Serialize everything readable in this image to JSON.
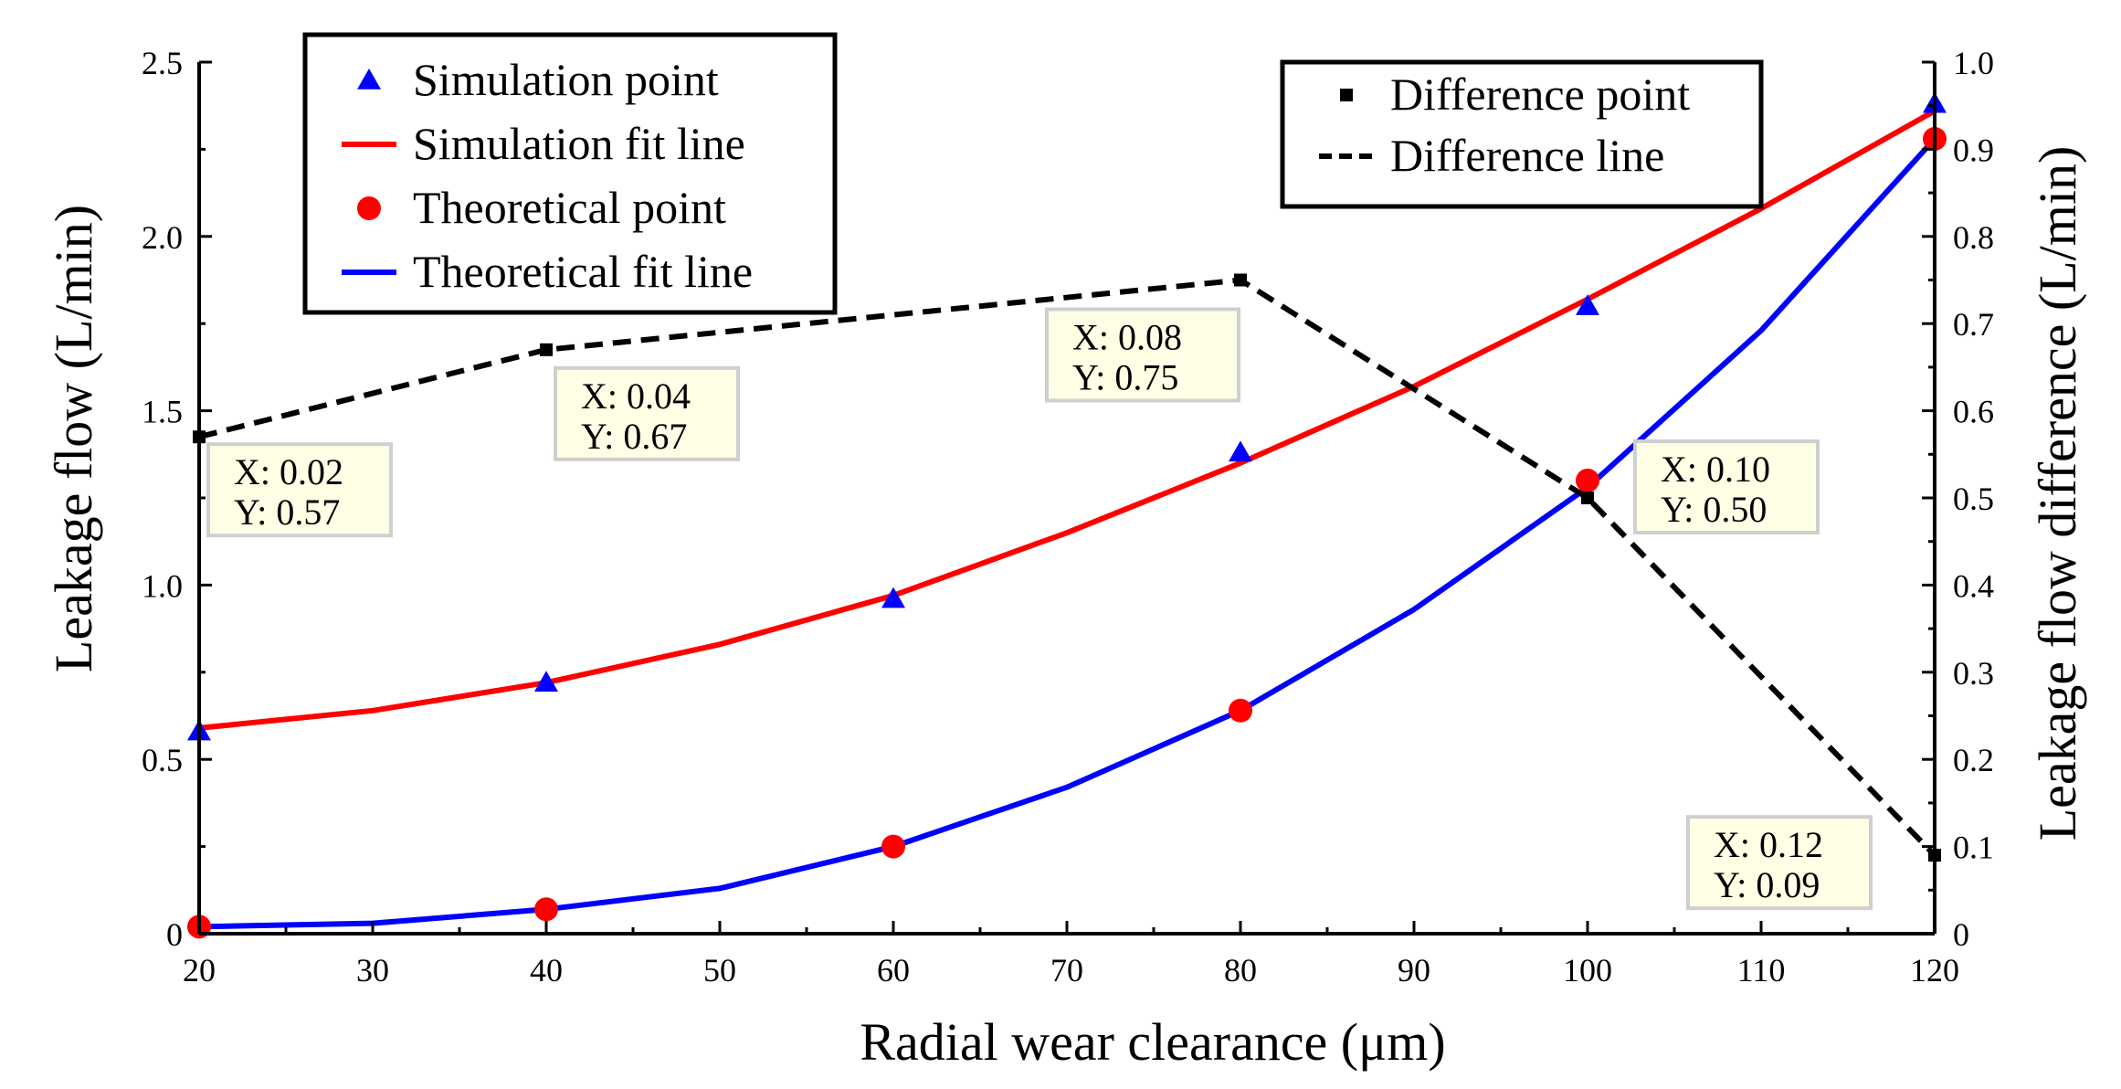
{
  "chart_data": {
    "type": "line",
    "title": "",
    "xlabel": "Radial wear clearance (μm)",
    "ylabel": "Leakage flow (L/min)",
    "y2label": "Leakage flow difference (L/min)",
    "xlim": [
      20,
      120
    ],
    "ylim": [
      0,
      2.5
    ],
    "y2lim": [
      0,
      1.0
    ],
    "grid": false,
    "x_ticks": [
      "20",
      "30",
      "40",
      "50",
      "60",
      "70",
      "80",
      "90",
      "100",
      "110",
      "120"
    ],
    "y_ticks": [
      "0",
      "0.5",
      "1.0",
      "1.5",
      "2.0",
      "2.5"
    ],
    "y2_ticks": [
      "0",
      "0.1",
      "0.2",
      "0.3",
      "0.4",
      "0.5",
      "0.6",
      "0.7",
      "0.8",
      "0.9",
      "1.0"
    ],
    "legend_left": {
      "placement": "top-left",
      "entries": [
        {
          "label": "Simulation point",
          "marker": "triangle",
          "color": "#0000ff"
        },
        {
          "label": "Simulation fit line",
          "line": "solid",
          "color": "#ff0000"
        },
        {
          "label": "Theoretical point",
          "marker": "circle",
          "color": "#ff0000"
        },
        {
          "label": "Theoretical fit line",
          "line": "solid",
          "color": "#0000ff"
        }
      ]
    },
    "legend_right": {
      "placement": "top-right",
      "entries": [
        {
          "label": "Difference point",
          "marker": "square",
          "color": "#000000"
        },
        {
          "label": "Difference line",
          "line": "dashed",
          "color": "#000000"
        }
      ]
    },
    "series": [
      {
        "name": "Simulation point",
        "axis": "left",
        "kind": "marker",
        "marker": "triangle",
        "color": "#0000ff",
        "x": [
          20,
          40,
          60,
          80,
          100,
          120
        ],
        "y": [
          0.58,
          0.72,
          0.96,
          1.38,
          1.8,
          2.38
        ]
      },
      {
        "name": "Simulation fit line",
        "axis": "left",
        "kind": "line",
        "dash": "solid",
        "color": "#ff0000",
        "x": [
          20,
          30,
          40,
          50,
          60,
          70,
          80,
          90,
          100,
          110,
          120
        ],
        "y": [
          0.59,
          0.64,
          0.72,
          0.83,
          0.97,
          1.15,
          1.35,
          1.57,
          1.82,
          2.08,
          2.36
        ]
      },
      {
        "name": "Theoretical point",
        "axis": "left",
        "kind": "marker",
        "marker": "circle",
        "color": "#ff0000",
        "x": [
          20,
          40,
          60,
          80,
          100,
          120
        ],
        "y": [
          0.02,
          0.07,
          0.25,
          0.64,
          1.3,
          2.28
        ]
      },
      {
        "name": "Theoretical fit line",
        "axis": "left",
        "kind": "line",
        "dash": "solid",
        "color": "#0000ff",
        "x": [
          20,
          30,
          40,
          50,
          60,
          70,
          80,
          90,
          100,
          110,
          120
        ],
        "y": [
          0.02,
          0.03,
          0.07,
          0.13,
          0.25,
          0.42,
          0.64,
          0.93,
          1.28,
          1.73,
          2.28
        ]
      },
      {
        "name": "Difference point",
        "axis": "right",
        "kind": "marker",
        "marker": "square",
        "color": "#000000",
        "x": [
          20,
          40,
          80,
          100,
          120
        ],
        "y": [
          0.57,
          0.67,
          0.75,
          0.5,
          0.09
        ]
      },
      {
        "name": "Difference line",
        "axis": "right",
        "kind": "line",
        "dash": "dashed",
        "color": "#000000",
        "x": [
          20,
          40,
          80,
          100,
          120
        ],
        "y": [
          0.57,
          0.67,
          0.75,
          0.5,
          0.09
        ]
      }
    ],
    "datatips": [
      {
        "line1": "X: 0.02",
        "line2": "Y: 0.57",
        "anchor_x": 20,
        "anchor_y2": 0.57
      },
      {
        "line1": "X: 0.04",
        "line2": "Y: 0.67",
        "anchor_x": 40,
        "anchor_y2": 0.67
      },
      {
        "line1": "X: 0.08",
        "line2": "Y: 0.75",
        "anchor_x": 80,
        "anchor_y2": 0.75
      },
      {
        "line1": "X: 0.10",
        "line2": "Y: 0.50",
        "anchor_x": 100,
        "anchor_y2": 0.5
      },
      {
        "line1": "X: 0.12",
        "line2": "Y: 0.09",
        "anchor_x": 120,
        "anchor_y2": 0.09
      }
    ]
  }
}
